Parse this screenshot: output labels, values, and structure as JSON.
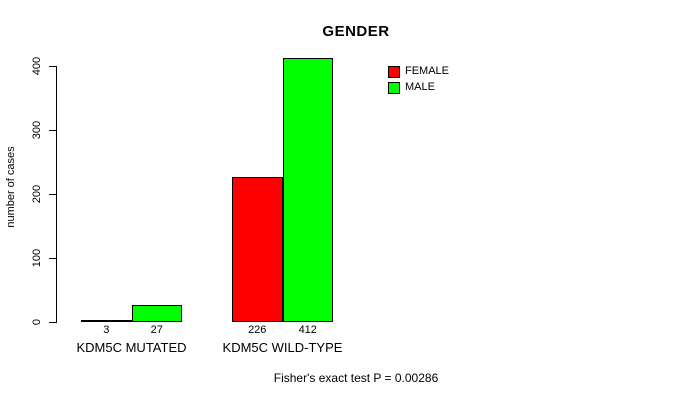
{
  "chart": {
    "title": "GENDER",
    "ylabel": "number of cases",
    "footer": "Fisher's exact test P = 0.00286"
  },
  "chart_data": {
    "type": "bar",
    "title": "GENDER",
    "ylabel": "number of cases",
    "xlabel": "",
    "categories": [
      "KDM5C MUTATED",
      "KDM5C WILD-TYPE"
    ],
    "series": [
      {
        "name": "FEMALE",
        "color": "#ff0000",
        "values": [
          3,
          226
        ]
      },
      {
        "name": "MALE",
        "color": "#00ff00",
        "values": [
          27,
          412
        ]
      }
    ],
    "bar_value_labels_shown": true,
    "y_ticks": [
      0,
      100,
      200,
      300,
      400
    ],
    "ylim": [
      0,
      412
    ],
    "grid": false,
    "legend_position": "top-right",
    "annotation": "Fisher's exact test P = 0.00286"
  }
}
